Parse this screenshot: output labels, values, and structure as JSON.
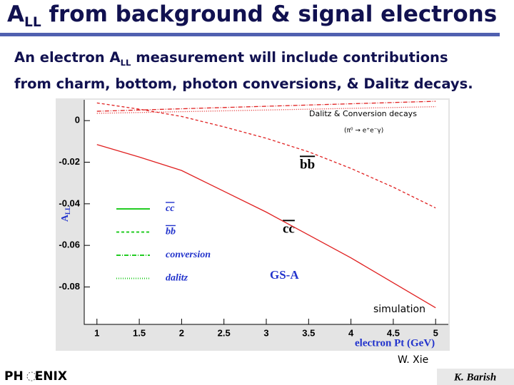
{
  "slide": {
    "title_main": "A",
    "title_sub": "LL",
    "title_rest": "from background & signal electrons",
    "line1_a": "An electron A",
    "line1_sub": "LL",
    "line1_b": "measurement will include contributions",
    "line2": "from charm, bottom, photon conversions, & Dalitz decays.",
    "credit": "W. Xie",
    "logo_a": "PH",
    "logo_b": "ENIX",
    "author": "K. Barish"
  },
  "chart_data": {
    "type": "line",
    "x_label": "electron Pt (GeV)",
    "y_label_main": "A",
    "y_label_sub": "LL",
    "annotations": {
      "decays": "Dalitz & Conversion decays",
      "decay_eq": "(π⁰ → e⁺e⁻γ)",
      "bb": "bb",
      "cc": "cc",
      "model": "GS-A",
      "sim": "simulation"
    },
    "x": [
      1,
      1.5,
      2,
      2.5,
      3,
      3.5,
      4,
      4.5,
      5
    ],
    "xlim": [
      0.85,
      5.15
    ],
    "xticks": [
      1,
      1.5,
      2,
      2.5,
      3,
      3.5,
      4,
      4.5,
      5
    ],
    "ylim": [
      -0.098,
      0.01
    ],
    "yticks": [
      0,
      -0.02,
      -0.04,
      -0.06,
      -0.08
    ],
    "series": [
      {
        "name": "cc",
        "color": "#e02020",
        "legend_color": "#22cc22",
        "style": "solid",
        "values": [
          -0.0115,
          -0.0175,
          -0.024,
          -0.034,
          -0.044,
          -0.055,
          -0.066,
          -0.078,
          -0.09
        ]
      },
      {
        "name": "bb",
        "color": "#e02020",
        "legend_color": "#22cc22",
        "style": "dashed",
        "values": [
          0.0085,
          0.0055,
          0.002,
          -0.003,
          -0.0085,
          -0.015,
          -0.023,
          -0.032,
          -0.042
        ]
      },
      {
        "name": "conversion",
        "color": "#e02020",
        "legend_color": "#22cc22",
        "style": "dashdot",
        "values": [
          0.0045,
          0.0051,
          0.0057,
          0.0063,
          0.0069,
          0.0075,
          0.0081,
          0.0087,
          0.0093
        ]
      },
      {
        "name": "dalitz",
        "color": "#e02020",
        "legend_color": "#22cc22",
        "style": "dotted",
        "values": [
          0.0035,
          0.0039,
          0.0043,
          0.0047,
          0.0051,
          0.0055,
          0.0059,
          0.0063,
          0.0067
        ]
      }
    ]
  }
}
